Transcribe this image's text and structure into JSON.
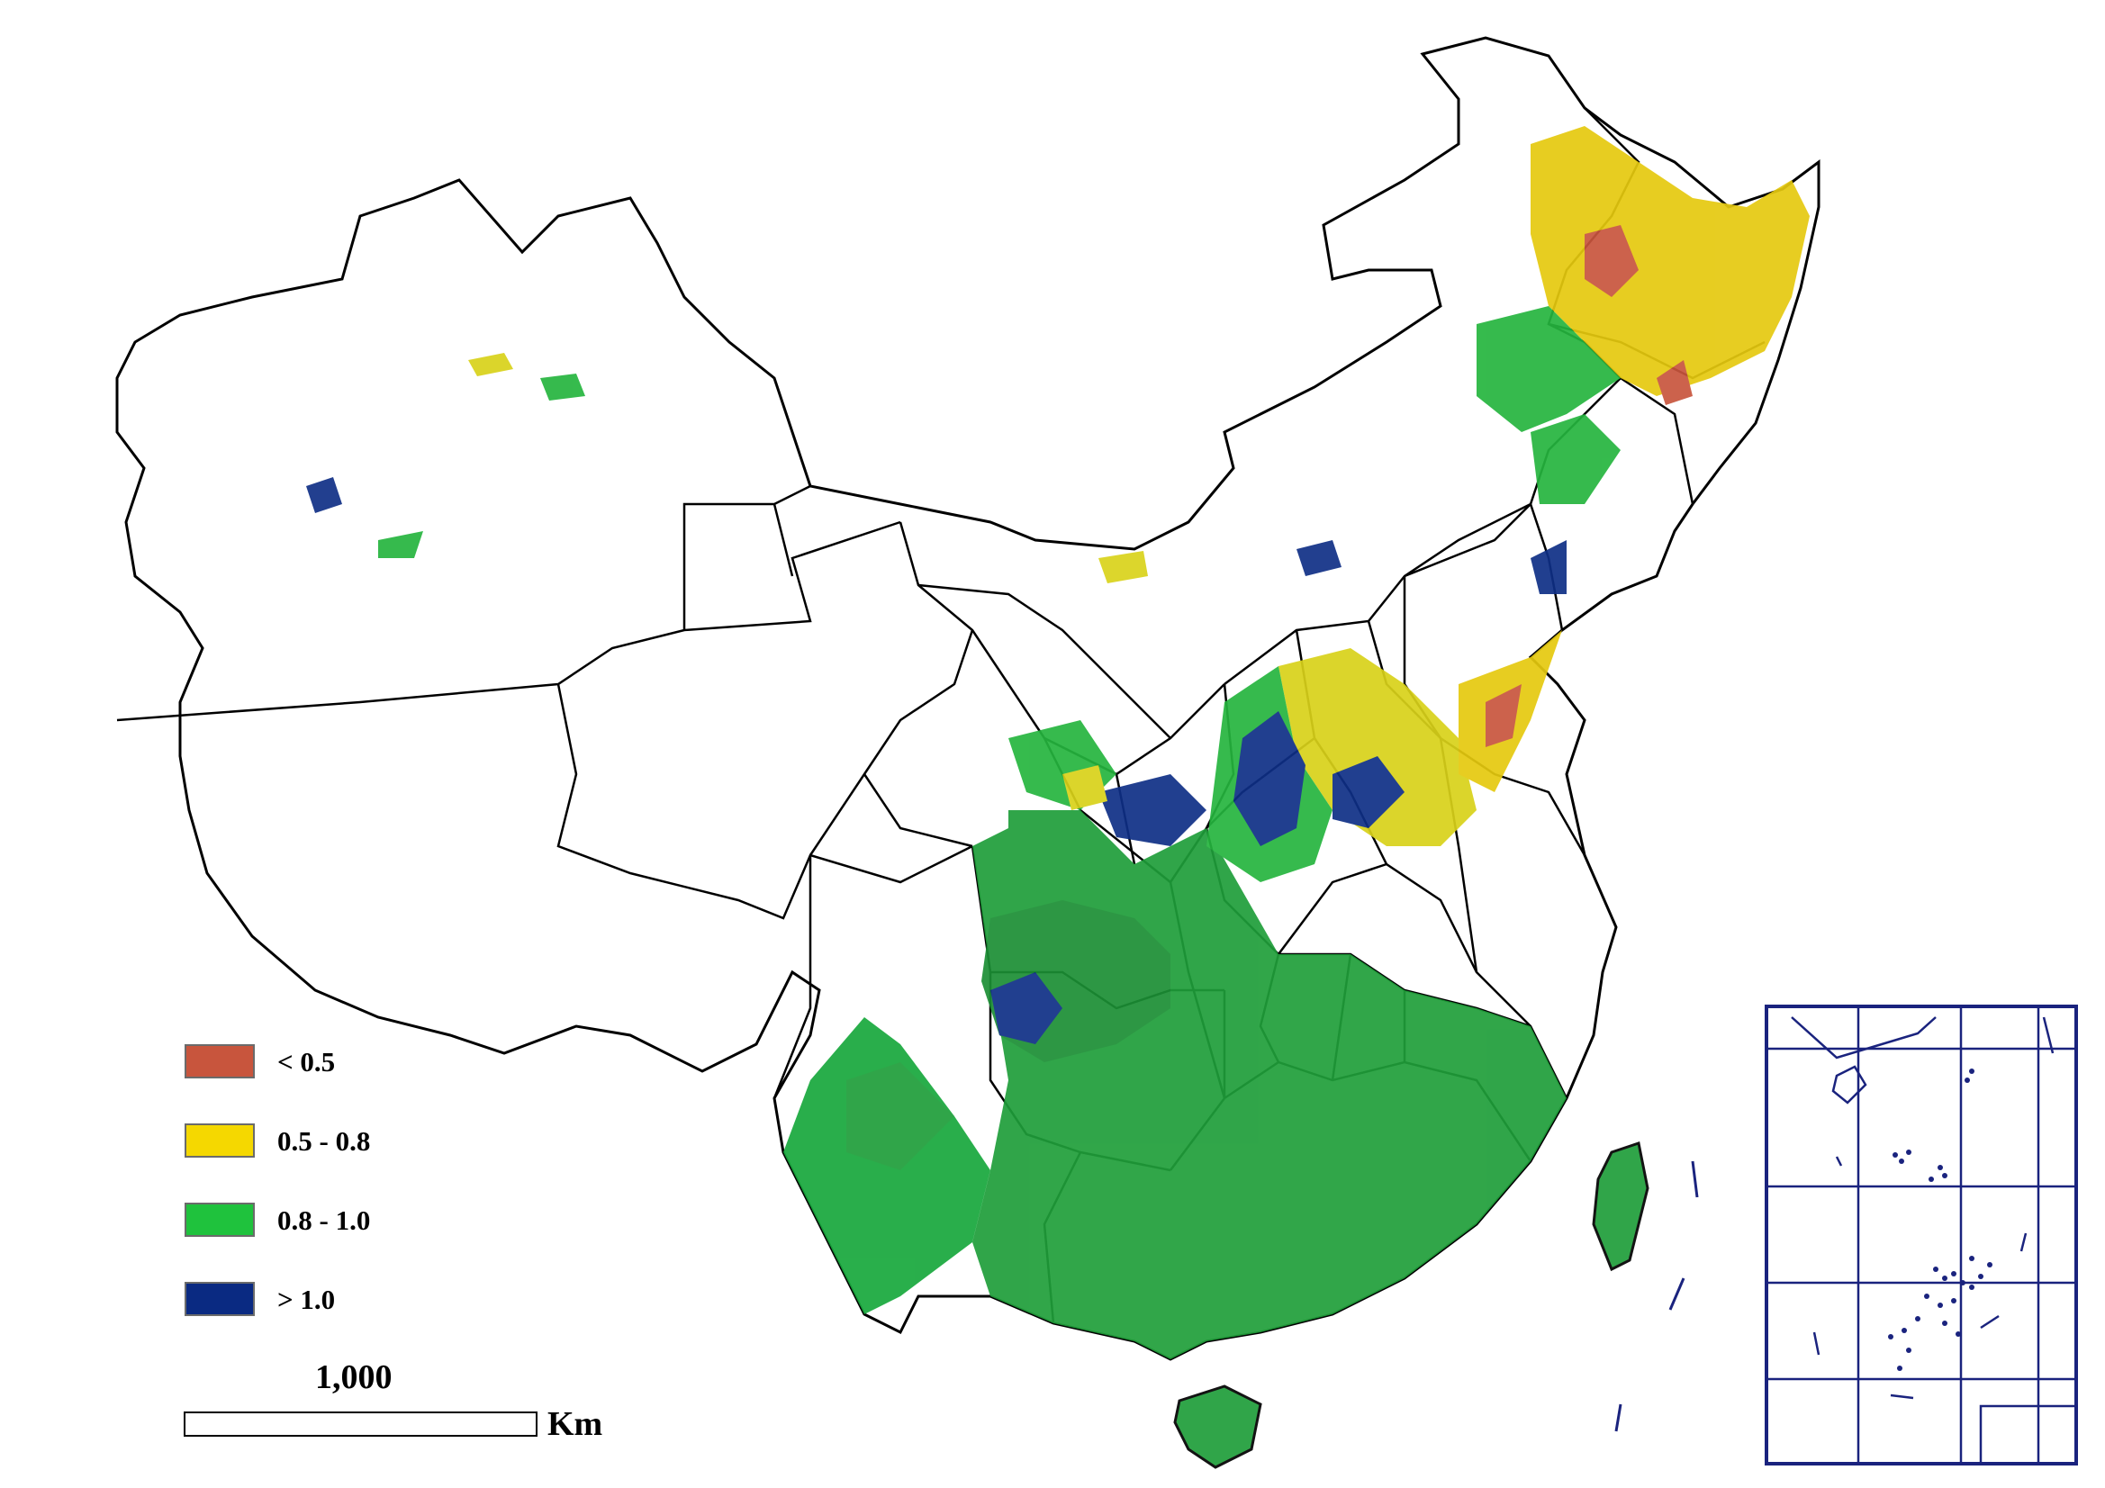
{
  "legend": {
    "items": [
      {
        "label": "< 0.5",
        "color": "#c8553d"
      },
      {
        "label": "0.5 - 0.8",
        "color": "#f5d800"
      },
      {
        "label": "0.8 - 1.0",
        "color": "#1fc23d"
      },
      {
        "label": "> 1.0",
        "color": "#0a2a82"
      }
    ]
  },
  "scale_bar": {
    "value": "1,000",
    "unit": "Km"
  },
  "colors": {
    "border": "#000000",
    "inset_frame": "#1a237e",
    "base_green": "#1f9e3a"
  }
}
